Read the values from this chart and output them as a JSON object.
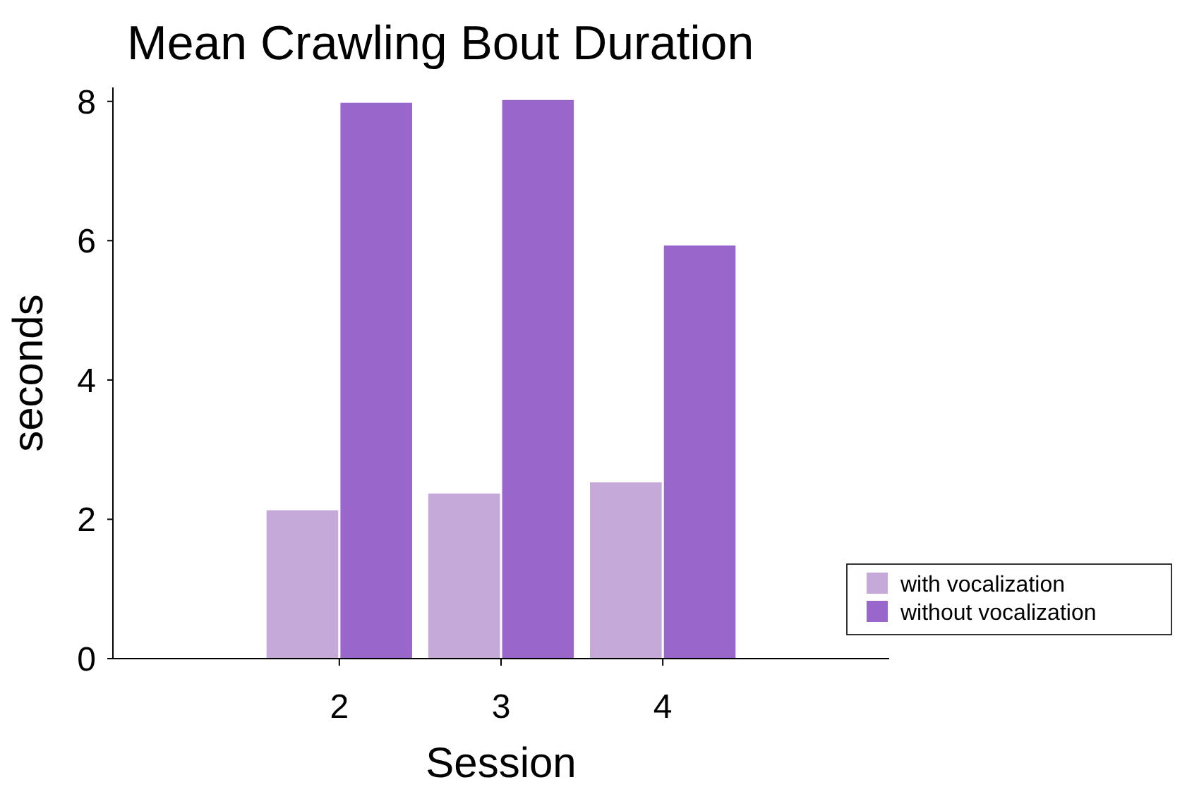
{
  "chart_data": {
    "type": "bar",
    "title": "Mean Crawling Bout Duration",
    "xlabel": "Session",
    "ylabel": "seconds",
    "categories": [
      "2",
      "3",
      "4"
    ],
    "series": [
      {
        "name": "with vocalization",
        "color": "#c5a9d9",
        "values": [
          2.13,
          2.37,
          2.53
        ]
      },
      {
        "name": "without vocalization",
        "color": "#9966cc",
        "values": [
          7.98,
          8.02,
          5.93
        ]
      }
    ],
    "ylim": [
      0,
      8.2
    ],
    "yticks": [
      0,
      2,
      4,
      6,
      8
    ],
    "grid": false,
    "legend": "bottom right"
  }
}
